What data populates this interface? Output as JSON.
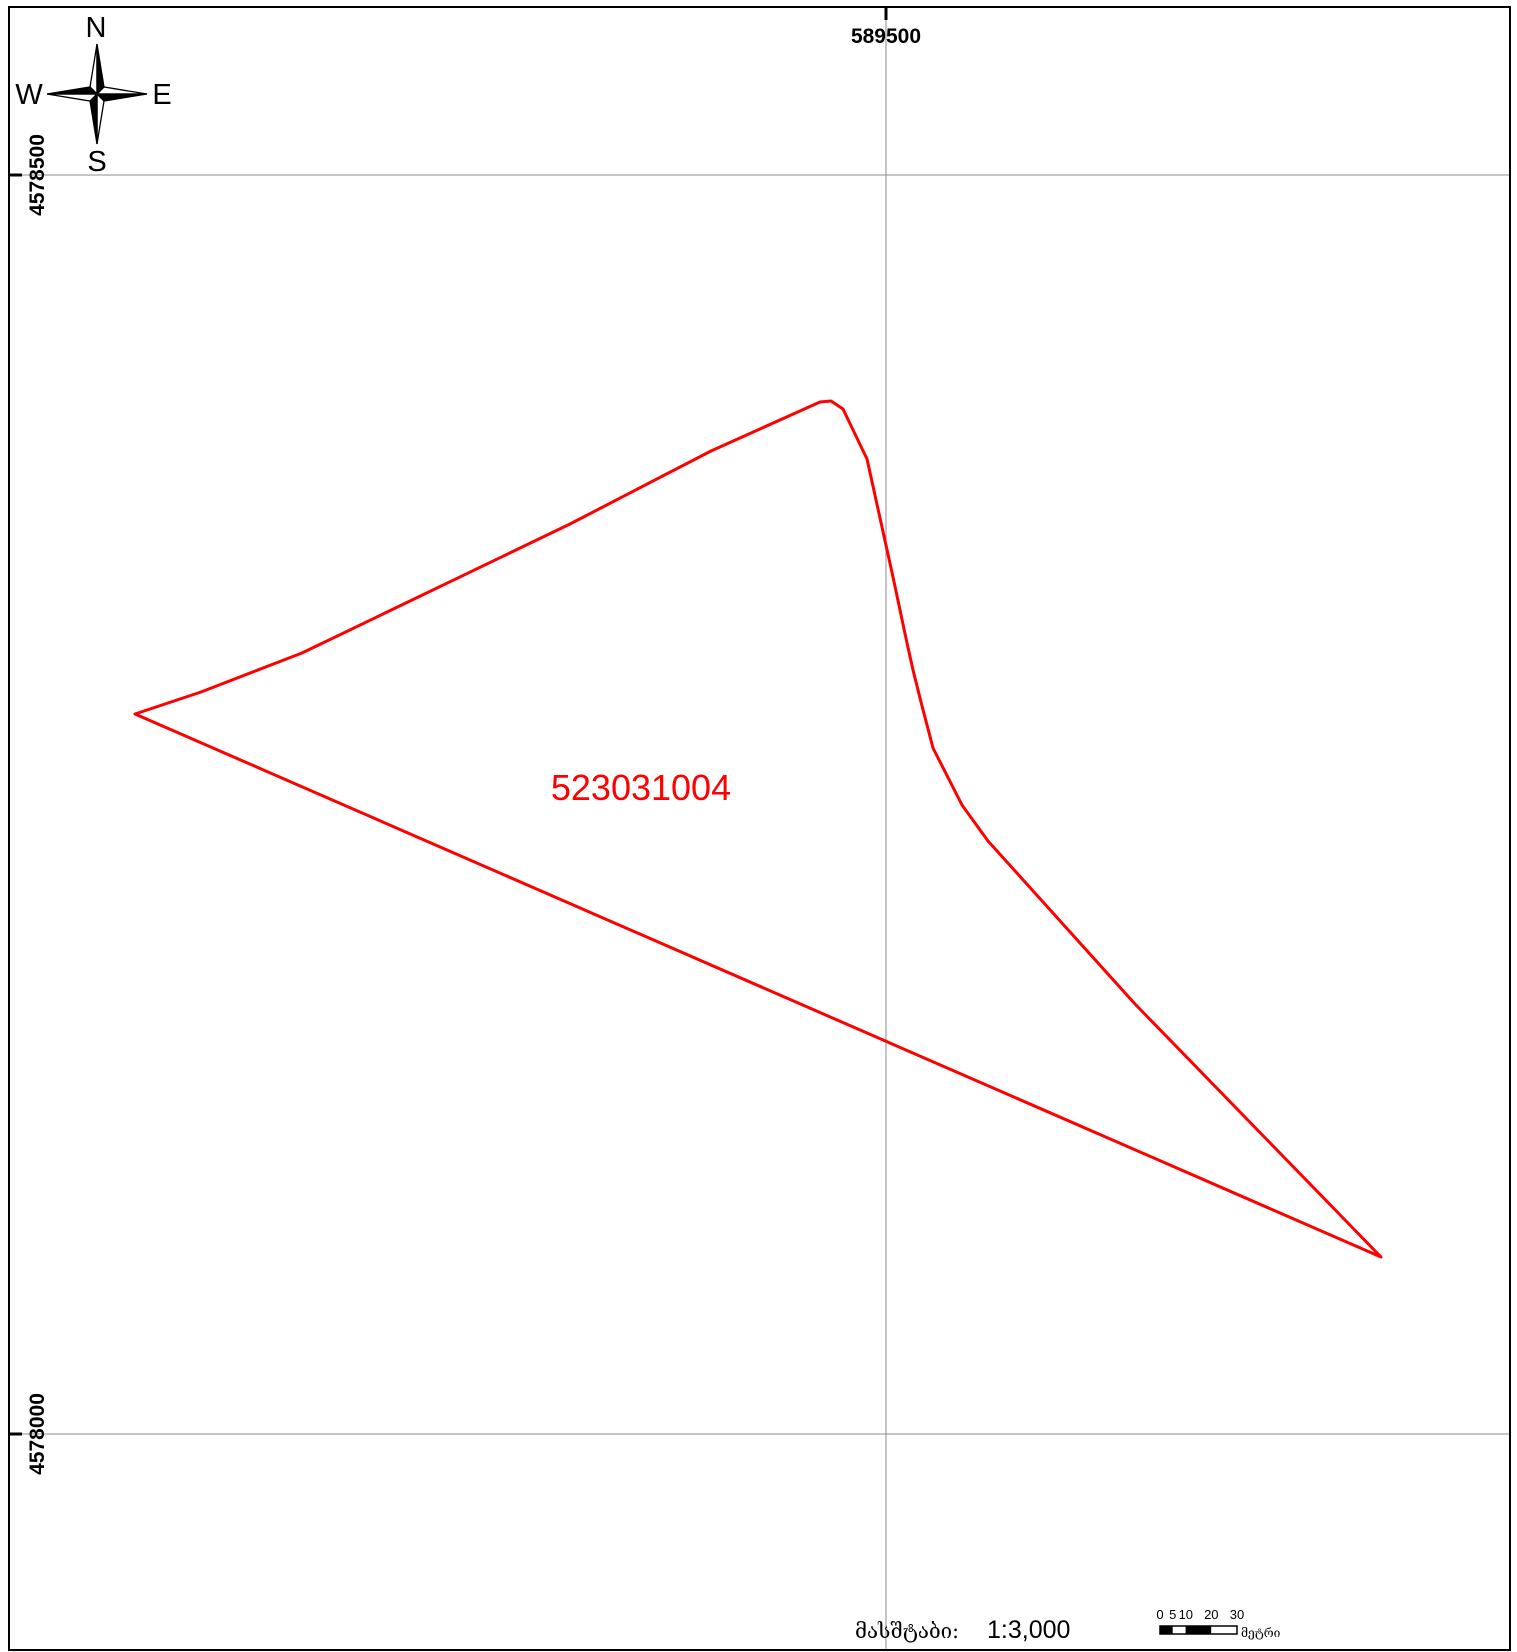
{
  "map": {
    "parcel_id": "523031004",
    "colors": {
      "parcel": "#ff0000",
      "grid": "#8c8c8c",
      "frame": "#000000"
    }
  },
  "grid": {
    "easting": [
      "589500"
    ],
    "northing": [
      "4578500",
      "4578000"
    ]
  },
  "north_arrow": {
    "icon": "compass-rose-icon",
    "n": "N",
    "e": "E",
    "s": "S",
    "w": "W"
  },
  "scale": {
    "label": "მასშტაბი:",
    "ratio": "1:3,000"
  },
  "scale_bar": {
    "ticks": [
      "0",
      "5",
      "10",
      "20",
      "30"
    ],
    "unit": "მეტრი"
  }
}
